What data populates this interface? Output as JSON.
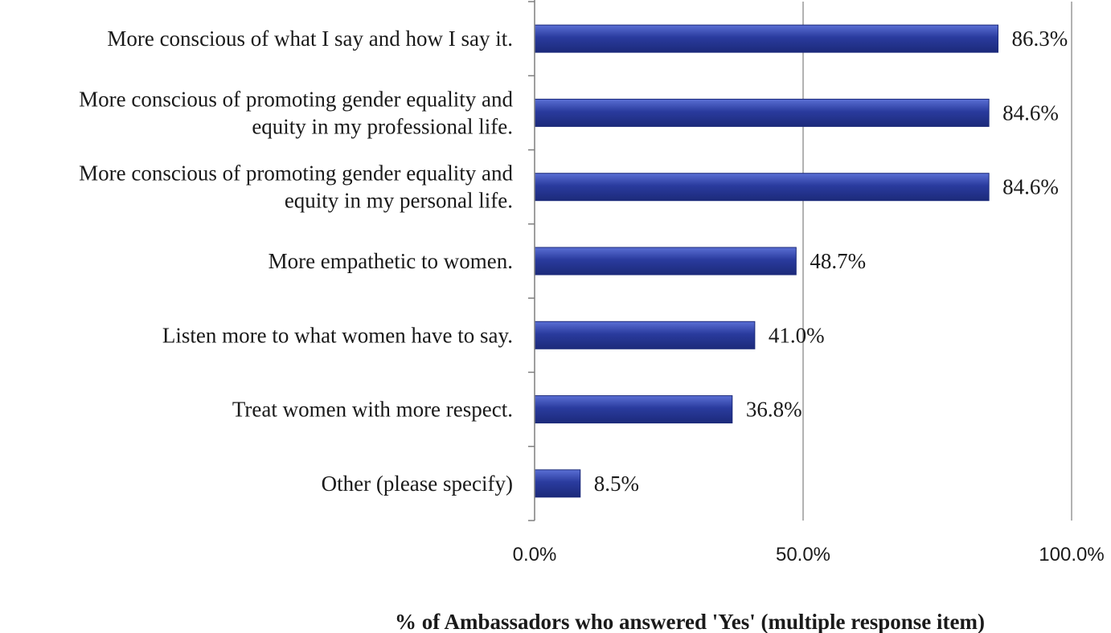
{
  "chart_data": {
    "type": "bar",
    "orientation": "horizontal",
    "categories": [
      [
        "More conscious of what I say and how I say it."
      ],
      [
        "More conscious of promoting gender equality and",
        "equity in my professional life."
      ],
      [
        "More conscious of promoting gender equality and",
        "equity in my personal life."
      ],
      [
        "More empathetic to women."
      ],
      [
        "Listen more to what women have to say."
      ],
      [
        "Treat women with more respect."
      ],
      [
        "Other (please specify)"
      ]
    ],
    "values": [
      86.3,
      84.6,
      84.6,
      48.7,
      41.0,
      36.8,
      8.5
    ],
    "value_labels": [
      "86.3%",
      "84.6%",
      "84.6%",
      "48.7%",
      "41.0%",
      "36.8%",
      "8.5%"
    ],
    "xlabel": "% of Ambassadors who answered 'Yes' (multiple  response item)",
    "ylabel": "",
    "title": "",
    "xlim": [
      0,
      100
    ],
    "x_ticks": [
      "0.0%",
      "50.0%",
      "100.0%"
    ],
    "grid": "vertical",
    "legend": "none",
    "colors": {
      "bar": "#2a3b9e",
      "bar_light": "#5a6fd4",
      "bar_dark": "#1c2a7a",
      "axis": "#7f7f7f"
    }
  }
}
